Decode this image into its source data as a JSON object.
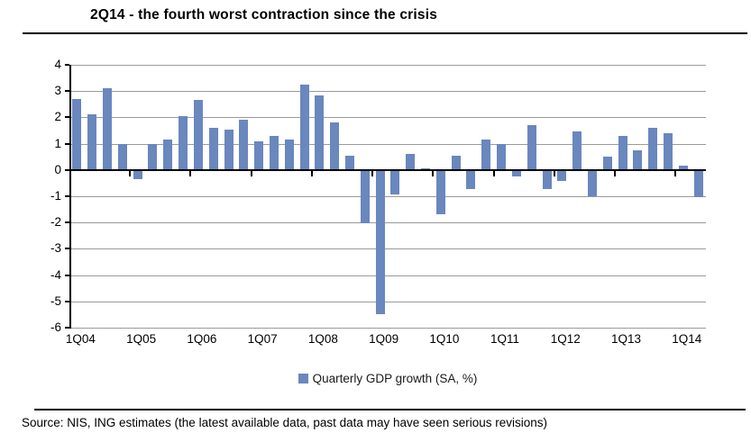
{
  "title": "2Q14 - the fourth worst contraction since the crisis",
  "source": "Source: NIS, ING estimates (the latest available data, past data may have seen serious revisions)",
  "legend": {
    "marker": "square",
    "label": "Quarterly GDP growth (SA, %)"
  },
  "colors": {
    "bar": "#6a87be",
    "gridline": "#9a9a9a",
    "axis": "#000000",
    "background": "#ffffff"
  },
  "chart_data": {
    "type": "bar",
    "title": "2Q14 - the fourth worst contraction since the crisis",
    "series_name": "Quarterly GDP growth (SA, %)",
    "categories": [
      "1Q04",
      "2Q04",
      "3Q04",
      "4Q04",
      "1Q05",
      "2Q05",
      "3Q05",
      "4Q05",
      "1Q06",
      "2Q06",
      "3Q06",
      "4Q06",
      "1Q07",
      "2Q07",
      "3Q07",
      "4Q07",
      "1Q08",
      "2Q08",
      "3Q08",
      "4Q08",
      "1Q09",
      "2Q09",
      "3Q09",
      "4Q09",
      "1Q10",
      "2Q10",
      "3Q10",
      "4Q10",
      "1Q11",
      "2Q11",
      "3Q11",
      "4Q11",
      "1Q12",
      "2Q12",
      "3Q12",
      "4Q12",
      "1Q13",
      "2Q13",
      "3Q13",
      "4Q13",
      "1Q14",
      "2Q14"
    ],
    "values": [
      2.7,
      2.1,
      3.1,
      1.0,
      -0.3,
      1.0,
      1.15,
      2.05,
      2.65,
      1.6,
      1.55,
      1.9,
      1.1,
      1.3,
      1.15,
      3.25,
      2.85,
      1.8,
      0.55,
      -2.0,
      -5.45,
      -0.9,
      0.6,
      0.05,
      -1.65,
      0.55,
      -0.7,
      1.15,
      1.0,
      -0.2,
      1.7,
      -0.7,
      -0.4,
      1.45,
      -0.95,
      0.5,
      1.3,
      0.75,
      1.6,
      1.4,
      0.15,
      -1.0
    ],
    "ylim": [
      -6,
      4
    ],
    "yticks": [
      4,
      3,
      2,
      1,
      0,
      -1,
      -2,
      -3,
      -4,
      -5,
      -6
    ],
    "x_tick_labels": [
      "1Q04",
      "1Q05",
      "1Q06",
      "1Q07",
      "1Q08",
      "1Q09",
      "1Q10",
      "1Q11",
      "1Q12",
      "1Q13",
      "1Q14"
    ],
    "grid": "horizontal",
    "legend_position": "bottom"
  }
}
